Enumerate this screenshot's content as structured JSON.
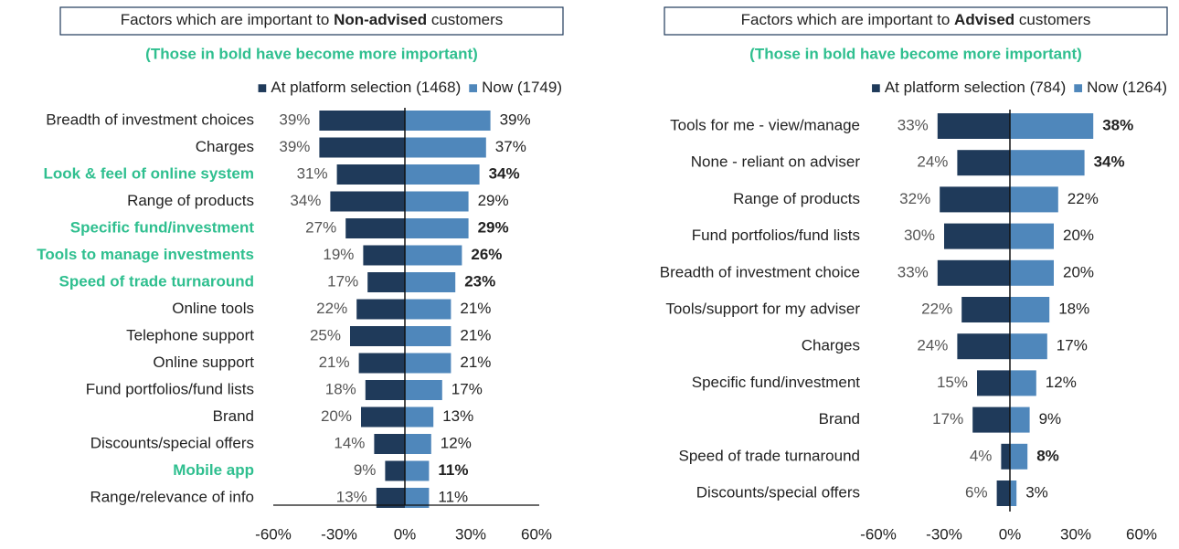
{
  "chart_data": [
    {
      "type": "butterfly",
      "title": {
        "pre": "Factors which are important to ",
        "bold": "Non-advised",
        "post": " customers"
      },
      "subtitle": "(Those in bold have become more important)",
      "categories": [
        "Breadth of investment choices",
        "Charges",
        "Look & feel of online system",
        "Range of products",
        "Specific fund/investment",
        "Tools to manage investments",
        "Speed of trade turnaround",
        "Online tools",
        "Telephone support",
        "Online support",
        "Fund portfolios/fund lists",
        "Brand",
        "Discounts/special offers",
        "Mobile app",
        "Range/relevance of info"
      ],
      "bold": [
        false,
        false,
        true,
        false,
        true,
        true,
        true,
        false,
        false,
        false,
        false,
        false,
        false,
        true,
        false
      ],
      "category_highlight_color": "#2fbf8f",
      "series": [
        {
          "name": "At platform selection (1468)",
          "color": "#1f3a5a",
          "values": [
            -39,
            -39,
            -31,
            -34,
            -27,
            -19,
            -17,
            -22,
            -25,
            -21,
            -18,
            -20,
            -14,
            -9,
            -13
          ],
          "value_labels": [
            "39%",
            "39%",
            "31%",
            "34%",
            "27%",
            "19%",
            "17%",
            "22%",
            "25%",
            "21%",
            "18%",
            "20%",
            "14%",
            "9%",
            "13%"
          ]
        },
        {
          "name": "Now (1749)",
          "color": "#4f87bb",
          "values": [
            39,
            37,
            34,
            29,
            29,
            26,
            23,
            21,
            21,
            21,
            17,
            13,
            12,
            11,
            11
          ],
          "value_labels": [
            "39%",
            "37%",
            "34%",
            "29%",
            "29%",
            "26%",
            "23%",
            "21%",
            "21%",
            "21%",
            "17%",
            "13%",
            "12%",
            "11%",
            "11%"
          ]
        }
      ],
      "xlim": [
        -60,
        60
      ],
      "xticks": [
        {
          "value": -60,
          "label": "-60%"
        },
        {
          "value": -30,
          "label": "-30%"
        },
        {
          "value": 0,
          "label": "0%"
        },
        {
          "value": 30,
          "label": "30%"
        },
        {
          "value": 60,
          "label": "60%"
        }
      ],
      "axis_line": true
    },
    {
      "type": "butterfly",
      "title": {
        "pre": "Factors which are important to ",
        "bold": "Advised",
        "post": " customers"
      },
      "subtitle": "(Those in bold have become more important)",
      "categories": [
        "Tools for me - view/manage",
        "None - reliant on adviser",
        "Range of products",
        "Fund portfolios/fund lists",
        "Breadth of investment choice",
        "Tools/support for my adviser",
        "Charges",
        "Specific fund/investment",
        "Brand",
        "Speed of trade turnaround",
        "Discounts/special offers"
      ],
      "bold": [
        true,
        true,
        false,
        false,
        false,
        false,
        false,
        false,
        false,
        true,
        false
      ],
      "series": [
        {
          "name": "At platform selection (784)",
          "color": "#1f3a5a",
          "values": [
            -33,
            -24,
            -32,
            -30,
            -33,
            -22,
            -24,
            -15,
            -17,
            -4,
            -6
          ],
          "value_labels": [
            "33%",
            "24%",
            "32%",
            "30%",
            "33%",
            "22%",
            "24%",
            "15%",
            "17%",
            "4%",
            "6%"
          ]
        },
        {
          "name": "Now (1264)",
          "color": "#4f87bb",
          "values": [
            38,
            34,
            22,
            20,
            20,
            18,
            17,
            12,
            9,
            8,
            3
          ],
          "value_labels": [
            "38%",
            "34%",
            "22%",
            "20%",
            "20%",
            "18%",
            "17%",
            "12%",
            "9%",
            "8%",
            "3%"
          ]
        }
      ],
      "xlim": [
        -60,
        60
      ],
      "xticks": [
        {
          "value": -60,
          "label": "-60%"
        },
        {
          "value": -30,
          "label": "-30%"
        },
        {
          "value": 0,
          "label": "0%"
        },
        {
          "value": 30,
          "label": "30%"
        },
        {
          "value": 60,
          "label": "60%"
        }
      ],
      "axis_line": false
    }
  ]
}
